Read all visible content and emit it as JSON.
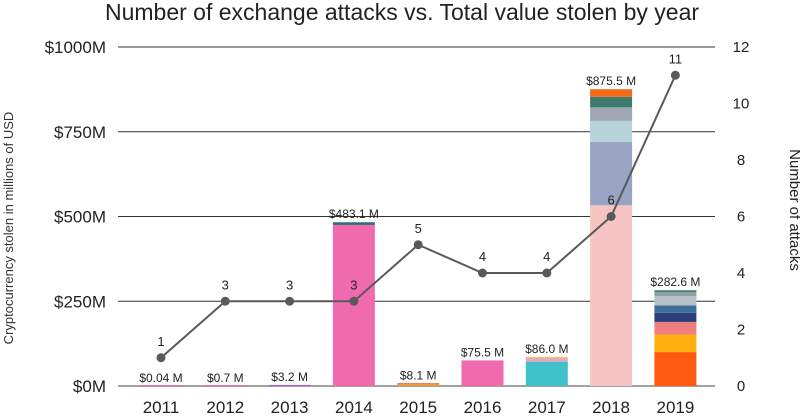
{
  "chart_data": {
    "type": "bar",
    "title": "Number of exchange attacks vs. Total value stolen by year",
    "ylabel": "Cryptocurrency stolen in millions of USD",
    "y2label": "Number of attacks",
    "categories": [
      "2011",
      "2012",
      "2013",
      "2014",
      "2015",
      "2016",
      "2017",
      "2018",
      "2019"
    ],
    "ylim": [
      0,
      1000
    ],
    "y_ticks": [
      0,
      250,
      500,
      750,
      1000
    ],
    "y_tick_labels": [
      "$0M",
      "$250M",
      "$500M",
      "$750M",
      "$1000M"
    ],
    "y2lim": [
      0,
      12
    ],
    "y2_ticks": [
      0,
      2,
      4,
      6,
      8,
      10,
      12
    ],
    "bar_value_labels": [
      "$0.04 M",
      "$0.7 M",
      "$3.2 M",
      "$483.1 M",
      "$8.1 M",
      "$75.5 M",
      "$86.0 M",
      "$875.5 M",
      "$282.6 M"
    ],
    "stacks": [
      [
        {
          "value": 0.04,
          "color": "#f06ab0"
        }
      ],
      [
        {
          "value": 0.7,
          "color": "#f06ab0"
        }
      ],
      [
        {
          "value": 3.2,
          "color": "#b35cc8"
        }
      ],
      [
        {
          "value": 475.1,
          "color": "#f06ab0"
        },
        {
          "value": 8.0,
          "color": "#2b6e7e"
        }
      ],
      [
        {
          "value": 5.1,
          "color": "#f09a2a"
        },
        {
          "value": 3.0,
          "color": "#d95f2a"
        }
      ],
      [
        {
          "value": 75.5,
          "color": "#f06ab0"
        }
      ],
      [
        {
          "value": 72.0,
          "color": "#3ec1c9"
        },
        {
          "value": 8.0,
          "color": "#f4a3b4"
        },
        {
          "value": 3.0,
          "color": "#c6a8d6"
        },
        {
          "value": 3.0,
          "color": "#f5c04a"
        }
      ],
      [
        {
          "value": 533,
          "color": "#f7c4c4"
        },
        {
          "value": 187,
          "color": "#99a3c2"
        },
        {
          "value": 62,
          "color": "#b7d3da"
        },
        {
          "value": 40,
          "color": "#9ea7b3"
        },
        {
          "value": 31,
          "color": "#3f7b6d"
        },
        {
          "value": 22.5,
          "color": "#f26a1a"
        }
      ],
      [
        {
          "value": 100,
          "color": "#ff5a10"
        },
        {
          "value": 52,
          "color": "#ffb010"
        },
        {
          "value": 37,
          "color": "#f08080"
        },
        {
          "value": 27,
          "color": "#2a3f7a"
        },
        {
          "value": 22,
          "color": "#3e6f9a"
        },
        {
          "value": 27,
          "color": "#b8c0c8"
        },
        {
          "value": 12,
          "color": "#8fa0a8"
        },
        {
          "value": 5.6,
          "color": "#3f8a6d"
        }
      ]
    ],
    "series": [
      {
        "name": "Number of attacks",
        "axis": "right",
        "values": [
          1,
          3,
          3,
          3,
          5,
          4,
          4,
          6,
          11
        ],
        "value_labels": [
          "1",
          "3",
          "3",
          "3",
          "5",
          "4",
          "4",
          "6",
          "11"
        ],
        "color": "#595959"
      }
    ],
    "grid": true
  }
}
